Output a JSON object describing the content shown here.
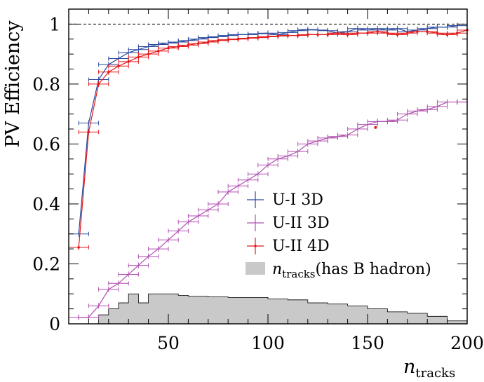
{
  "chart_data": {
    "type": "line",
    "xlabel": "n",
    "xlabel_sub": "tracks",
    "ylabel": "PV Efficiency",
    "xlim": [
      0,
      200
    ],
    "ylim": [
      0,
      1.05
    ],
    "x_ticks": [
      50,
      100,
      150,
      200
    ],
    "y_ticks": [
      0,
      0.2,
      0.4,
      0.6,
      0.8,
      1
    ],
    "x_tick_labels": [
      "50",
      "100",
      "150",
      "200"
    ],
    "y_tick_labels": [
      "0",
      "0.2",
      "0.4",
      "0.6",
      "0.8",
      "1"
    ],
    "reference_line": 1,
    "grid": false,
    "legend_position": "lower-right",
    "bin_width": 10,
    "series": [
      {
        "name": "U-I 3D",
        "color": "#2b4a9e",
        "x": [
          5,
          10,
          15,
          20,
          25,
          30,
          35,
          40,
          45,
          50,
          55,
          60,
          65,
          70,
          75,
          80,
          85,
          90,
          95,
          100,
          105,
          110,
          115,
          120,
          125,
          130,
          135,
          140,
          145,
          150,
          155,
          160,
          165,
          170,
          175,
          180,
          185,
          190,
          195,
          200
        ],
        "y": [
          0.3,
          0.67,
          0.815,
          0.865,
          0.885,
          0.905,
          0.915,
          0.925,
          0.932,
          0.937,
          0.94,
          0.945,
          0.95,
          0.955,
          0.958,
          0.962,
          0.965,
          0.965,
          0.968,
          0.97,
          0.965,
          0.972,
          0.978,
          0.982,
          0.98,
          0.978,
          0.97,
          0.975,
          0.985,
          0.98,
          0.985,
          0.98,
          0.985,
          0.975,
          0.98,
          0.985,
          0.99,
          0.99,
          0.995,
          0.995
        ]
      },
      {
        "name": "U-II 3D",
        "color": "#b04fb0",
        "x": [
          5,
          10,
          15,
          20,
          25,
          30,
          35,
          40,
          45,
          50,
          55,
          60,
          65,
          70,
          75,
          80,
          85,
          90,
          95,
          100,
          105,
          110,
          115,
          120,
          125,
          130,
          135,
          140,
          145,
          150,
          155,
          160,
          165,
          170,
          175,
          180,
          185,
          190,
          195,
          200
        ],
        "y": [
          0.022,
          0.022,
          0.06,
          0.115,
          0.135,
          0.165,
          0.195,
          0.225,
          0.25,
          0.28,
          0.31,
          0.34,
          0.36,
          0.38,
          0.4,
          0.44,
          0.46,
          0.48,
          0.5,
          0.53,
          0.55,
          0.56,
          0.575,
          0.6,
          0.61,
          0.62,
          0.625,
          0.63,
          0.65,
          0.665,
          0.675,
          0.675,
          0.68,
          0.7,
          0.71,
          0.715,
          0.725,
          0.74,
          0.74,
          0.74
        ]
      },
      {
        "name": "U-II 4D",
        "color": "#e41a1c",
        "x": [
          5,
          10,
          15,
          20,
          25,
          30,
          35,
          40,
          45,
          50,
          55,
          60,
          65,
          70,
          75,
          80,
          85,
          90,
          95,
          100,
          105,
          110,
          115,
          120,
          125,
          130,
          135,
          140,
          145,
          150,
          155,
          160,
          165,
          170,
          175,
          180,
          185,
          190,
          195,
          200
        ],
        "y": [
          0.255,
          0.64,
          0.8,
          0.84,
          0.86,
          0.875,
          0.89,
          0.9,
          0.91,
          0.92,
          0.925,
          0.93,
          0.935,
          0.94,
          0.945,
          0.948,
          0.95,
          0.953,
          0.955,
          0.958,
          0.96,
          0.962,
          0.962,
          0.965,
          0.965,
          0.965,
          0.97,
          0.965,
          0.97,
          0.97,
          0.975,
          0.97,
          0.965,
          0.97,
          0.975,
          0.975,
          0.97,
          0.965,
          0.97,
          0.98
        ]
      }
    ],
    "stray_points": [
      {
        "series": "U-II 4D",
        "x": 154,
        "y": 0.655
      }
    ],
    "histogram": {
      "name": "n",
      "name_sub": "tracks",
      "name_suffix": "(has B hadron)",
      "color": "#c9c9c9",
      "edges": [
        0,
        10,
        15,
        20,
        25,
        30,
        35,
        40,
        50,
        55,
        60,
        70,
        80,
        100,
        110,
        120,
        130,
        140,
        150,
        160,
        170,
        180,
        190,
        200
      ],
      "values": [
        0.0,
        0.0,
        0.03,
        0.05,
        0.07,
        0.1,
        0.07,
        0.1,
        0.1,
        0.095,
        0.092,
        0.09,
        0.088,
        0.083,
        0.08,
        0.07,
        0.066,
        0.06,
        0.05,
        0.04,
        0.035,
        0.025,
        0.01
      ]
    }
  }
}
